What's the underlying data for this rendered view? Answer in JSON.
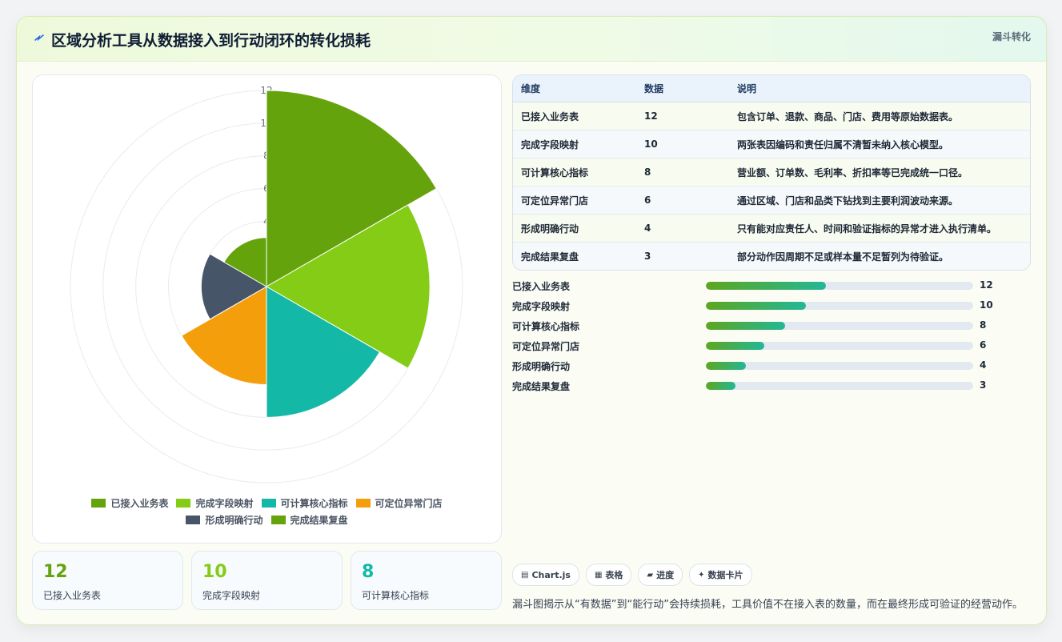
{
  "header": {
    "title": "区域分析工具从数据接入到行动闭环的转化损耗",
    "badge": "漏斗转化"
  },
  "chart_data": {
    "type": "polarArea",
    "categories": [
      "已接入业务表",
      "完成字段映射",
      "可计算核心指标",
      "可定位异常门店",
      "形成明确行动",
      "完成结果复盘"
    ],
    "values": [
      12,
      10,
      8,
      6,
      4,
      3
    ],
    "colors": [
      "#65a30d",
      "#84cc16",
      "#14b8a6",
      "#f59e0b",
      "#475569",
      "#65a30d"
    ],
    "r_ticks": [
      "4",
      "6",
      "8",
      "10",
      "12"
    ],
    "r_max": 12,
    "grid": true,
    "legend_position": "bottom"
  },
  "legend": {
    "items": [
      "已接入业务表",
      "完成字段映射",
      "可计算核心指标",
      "可定位异常门店",
      "形成明确行动",
      "完成结果复盘"
    ]
  },
  "stats": [
    {
      "value": "12",
      "label": "已接入业务表",
      "color": "#65a30d"
    },
    {
      "value": "10",
      "label": "完成字段映射",
      "color": "#84cc16"
    },
    {
      "value": "8",
      "label": "可计算核心指标",
      "color": "#14b8a6"
    }
  ],
  "table": {
    "headers": [
      "维度",
      "数据",
      "说明"
    ],
    "rows": [
      [
        "已接入业务表",
        "12",
        "包含订单、退款、商品、门店、费用等原始数据表。"
      ],
      [
        "完成字段映射",
        "10",
        "两张表因编码和责任归属不清暂未纳入核心模型。"
      ],
      [
        "可计算核心指标",
        "8",
        "营业额、订单数、毛利率、折扣率等已完成统一口径。"
      ],
      [
        "可定位异常门店",
        "6",
        "通过区域、门店和品类下钻找到主要利润波动来源。"
      ],
      [
        "形成明确行动",
        "4",
        "只有能对应责任人、时间和验证指标的异常才进入执行清单。"
      ],
      [
        "完成结果复盘",
        "3",
        "部分动作因周期不足或样本量不足暂列为待验证。"
      ]
    ]
  },
  "progress": [
    {
      "label": "已接入业务表",
      "value": "12",
      "fraction": 0.45
    },
    {
      "label": "完成字段映射",
      "value": "10",
      "fraction": 0.375
    },
    {
      "label": "可计算核心指标",
      "value": "8",
      "fraction": 0.295
    },
    {
      "label": "可定位异常门店",
      "value": "6",
      "fraction": 0.22
    },
    {
      "label": "形成明确行动",
      "value": "4",
      "fraction": 0.15
    },
    {
      "label": "完成结果复盘",
      "value": "3",
      "fraction": 0.11
    }
  ],
  "tags": [
    {
      "icon": "chart-icon",
      "glyph": "▤",
      "label": "Chart.js"
    },
    {
      "icon": "table-icon",
      "glyph": "▦",
      "label": "表格"
    },
    {
      "icon": "progress-icon",
      "glyph": "▰",
      "label": "进度"
    },
    {
      "icon": "sparkle-icon",
      "glyph": "✦",
      "label": "数据卡片"
    }
  ],
  "note": "漏斗图揭示从“有数据”到“能行动”会持续损耗，工具价值不在接入表的数量，而在最终形成可验证的经营动作。"
}
